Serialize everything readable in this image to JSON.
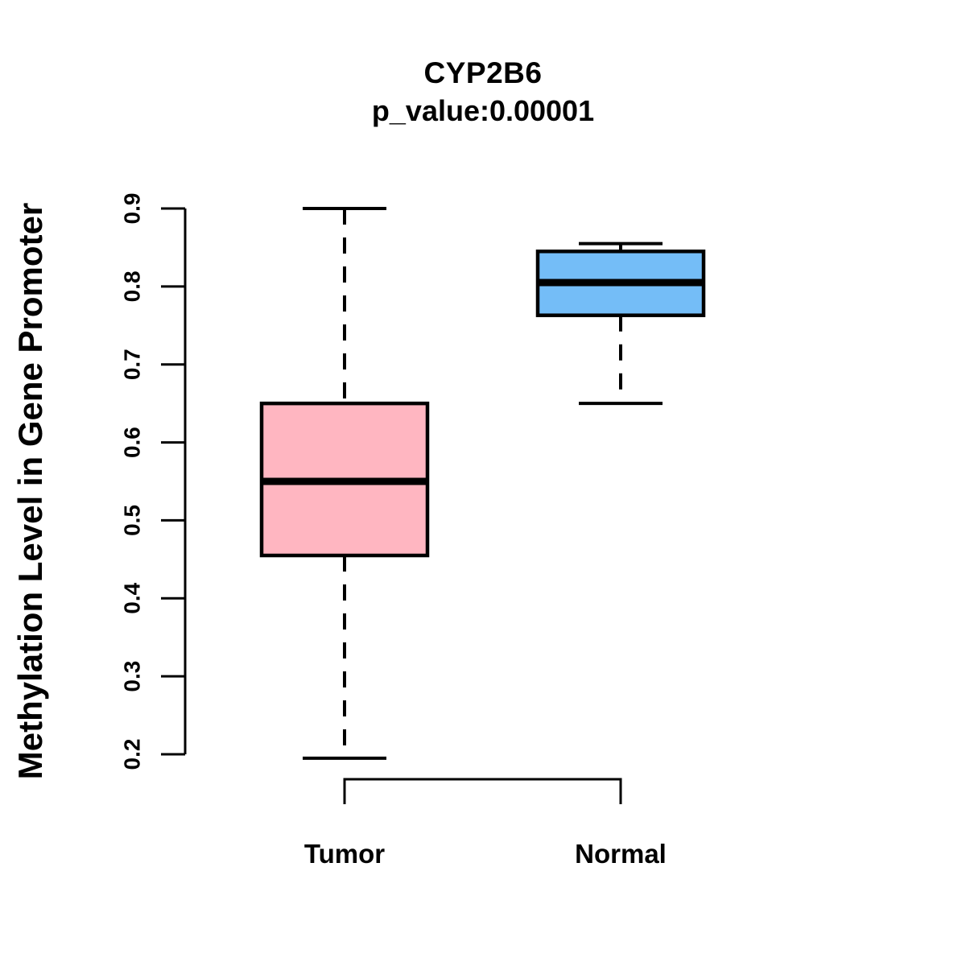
{
  "chart_data": {
    "type": "boxplot",
    "title": "CYP2B6",
    "subtitle": "p_value:0.00001",
    "ylabel": "Methylation Level in Gene Promoter",
    "xlabel": "",
    "ylim": [
      0.2,
      0.9
    ],
    "yticks": [
      "0.2",
      "0.3",
      "0.4",
      "0.5",
      "0.6",
      "0.7",
      "0.8",
      "0.9"
    ],
    "ytick_values": [
      0.2,
      0.3,
      0.4,
      0.5,
      0.6,
      0.7,
      0.8,
      0.9
    ],
    "grid": "off",
    "legend": "none",
    "groups": [
      {
        "label": "Tumor",
        "color": "#FFB6C1",
        "border_color": "#000000",
        "whisker_low": 0.195,
        "q1": 0.455,
        "median": 0.55,
        "q3": 0.65,
        "whisker_high": 0.9
      },
      {
        "label": "Normal",
        "color": "#74BDF7",
        "border_color": "#000000",
        "whisker_low": 0.65,
        "q1": 0.763,
        "median": 0.805,
        "q3": 0.845,
        "whisker_high": 0.855
      }
    ]
  }
}
